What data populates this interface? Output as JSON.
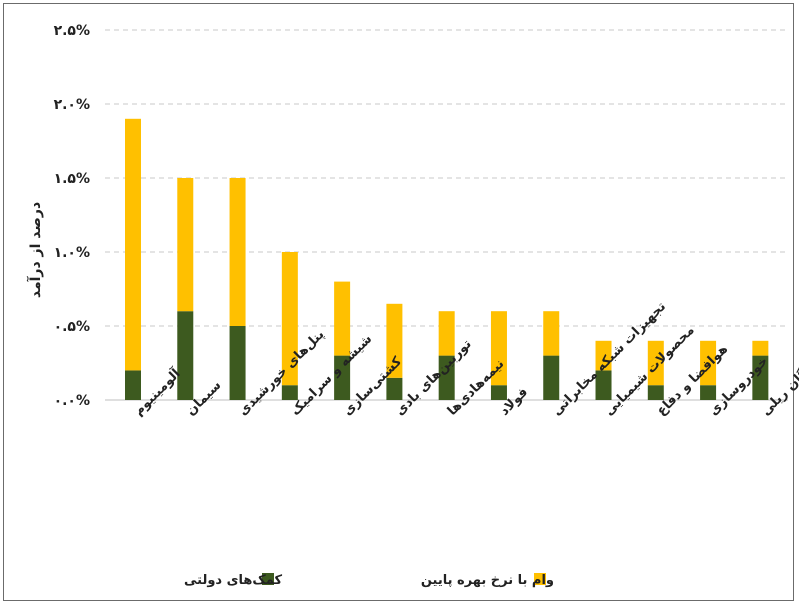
{
  "chart_data": {
    "type": "bar",
    "stacked": true,
    "title": "",
    "ylabel": "درصد از درآمد",
    "xlabel": "",
    "ylim": [
      0,
      2.5
    ],
    "y_ticks": [
      0,
      0.5,
      1.0,
      1.5,
      2.0,
      2.5
    ],
    "y_tick_labels": [
      "۰.۰%",
      "۰.۵%",
      "۱.۰%",
      "۱.۵%",
      "۲.۰%",
      "۲.۵%"
    ],
    "grid": true,
    "legend_position": "bottom",
    "categories": [
      "آلومینیوم",
      "سیمان",
      "پنل‌های خورشیدی",
      "شیشه و سرامیک",
      "کشتی‌سازی",
      "توربین‌های بادی",
      "نیمه‌هادی‌ها",
      "فولاد",
      "تجهیزات شبکه مخابراتی",
      "محصولات شیمیایی",
      "هوافضا و دفاع",
      "خودروسازی",
      "ناوگان ریلی"
    ],
    "series": [
      {
        "name": "کمک‌های دولتی",
        "color": "#3d5a1f",
        "values": [
          0.2,
          0.6,
          0.5,
          0.1,
          0.3,
          0.15,
          0.3,
          0.1,
          0.3,
          0.2,
          0.1,
          0.1,
          0.3
        ]
      },
      {
        "name": "وام با نرخ بهره پایین",
        "color": "#ffc000",
        "values": [
          1.7,
          0.9,
          1.0,
          0.9,
          0.5,
          0.5,
          0.3,
          0.5,
          0.3,
          0.2,
          0.3,
          0.3,
          0.1
        ]
      }
    ]
  }
}
